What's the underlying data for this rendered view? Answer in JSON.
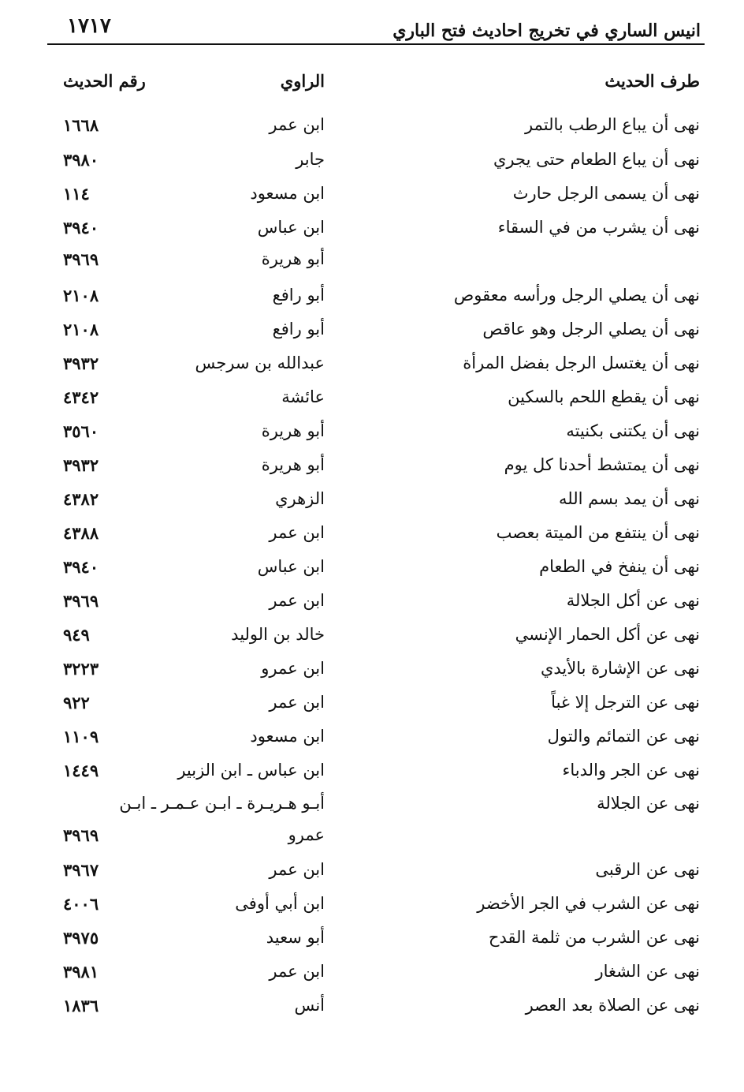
{
  "header": {
    "title": "انيس الساري في تخريج احاديث فتح الباري",
    "page_number": "١٧١٧"
  },
  "columns": {
    "hadith": "طرف الحديث",
    "narrator": "الراوي",
    "number": "رقم الحديث"
  },
  "rows": [
    {
      "hadith": "نهى أن يباع الرطب بالتمر",
      "narrator": "ابن عمر",
      "number": "١٦٦٨"
    },
    {
      "hadith": "نهى أن يباع الطعام حتى يجري",
      "narrator": "جابر",
      "number": "٣٩٨٠"
    },
    {
      "hadith": "نهى أن يسمى الرجل حارث",
      "narrator": "ابن مسعود",
      "number": "١١٤"
    },
    {
      "hadith": "نهى أن يشرب من في السقاء",
      "narrator": "ابن عباس",
      "number": "٣٩٤٠"
    },
    {
      "hadith": "",
      "narrator": "أبو هريرة",
      "number": "٣٩٦٩"
    },
    {
      "hadith": "نهى أن يصلي الرجل ورأسه معقوص",
      "narrator": "أبو رافع",
      "number": "٢١٠٨"
    },
    {
      "hadith": "نهى أن يصلي الرجل وهو عاقص",
      "narrator": "أبو رافع",
      "number": "٢١٠٨"
    },
    {
      "hadith": "نهى أن يغتسل الرجل بفضل المرأة",
      "narrator": "عبدالله  بن سرجس",
      "number": "٣٩٣٢"
    },
    {
      "hadith": "نهى أن يقطع اللحم بالسكين",
      "narrator": "عائشة",
      "number": "٤٣٤٢"
    },
    {
      "hadith": "نهى أن يكتنى بكنيته",
      "narrator": "أبو هريرة",
      "number": "٣٥٦٠"
    },
    {
      "hadith": "نهى أن يمتشط أحدنا كل يوم",
      "narrator": "أبو هريرة",
      "number": "٣٩٣٢"
    },
    {
      "hadith": "نهى أن يمد بسم  الله",
      "narrator": "الزهري",
      "number": "٤٣٨٢"
    },
    {
      "hadith": "نهى أن ينتفع من الميتة بعصب",
      "narrator": "ابن عمر",
      "number": "٤٣٨٨"
    },
    {
      "hadith": "نهى أن ينفخ في الطعام",
      "narrator": "ابن عباس",
      "number": "٣٩٤٠"
    },
    {
      "hadith": "نهى عن أكل الجلالة",
      "narrator": "ابن عمر",
      "number": "٣٩٦٩"
    },
    {
      "hadith": "نهى عن أكل الحمار الإنسي",
      "narrator": "خالد  بن الوليد",
      "number": "٩٤٩"
    },
    {
      "hadith": "نهى عن الإشارة بالأيدي",
      "narrator": "ابن عمرو",
      "number": "٣٢٢٣"
    },
    {
      "hadith": "نهى عن الترجل إلا غباً",
      "narrator": "ابن عمر",
      "number": "٩٢٢"
    },
    {
      "hadith": "نهى عن التمائم والتول",
      "narrator": "ابن مسعود",
      "number": "١١٠٩"
    },
    {
      "hadith": "نهى عن الجر والدباء",
      "narrator": "ابن عباس ـ ابن الزبير",
      "number": "١٤٤٩"
    },
    {
      "hadith": "نهى عن الجلالة",
      "narrator": "أبـو هـريـرة ـ ابـن عـمـر ـ ابـن",
      "number": ""
    },
    {
      "hadith": "",
      "narrator": "عمرو",
      "number": "٣٩٦٩"
    },
    {
      "hadith": "نهى عن الرقبى",
      "narrator": "ابن عمر",
      "number": "٣٩٦٧"
    },
    {
      "hadith": "نهى عن الشرب في الجر الأخضر",
      "narrator": "ابن أبي أوفى",
      "number": "٤٠٠٦"
    },
    {
      "hadith": "نهى عن الشرب من ثلمة القدح",
      "narrator": "أبو سعيد",
      "number": "٣٩٧٥"
    },
    {
      "hadith": "نهى عن الشغار",
      "narrator": "ابن عمر",
      "number": "٣٩٨١"
    },
    {
      "hadith": "نهى عن الصلاة بعد العصر",
      "narrator": "أنس",
      "number": "١٨٣٦"
    }
  ]
}
